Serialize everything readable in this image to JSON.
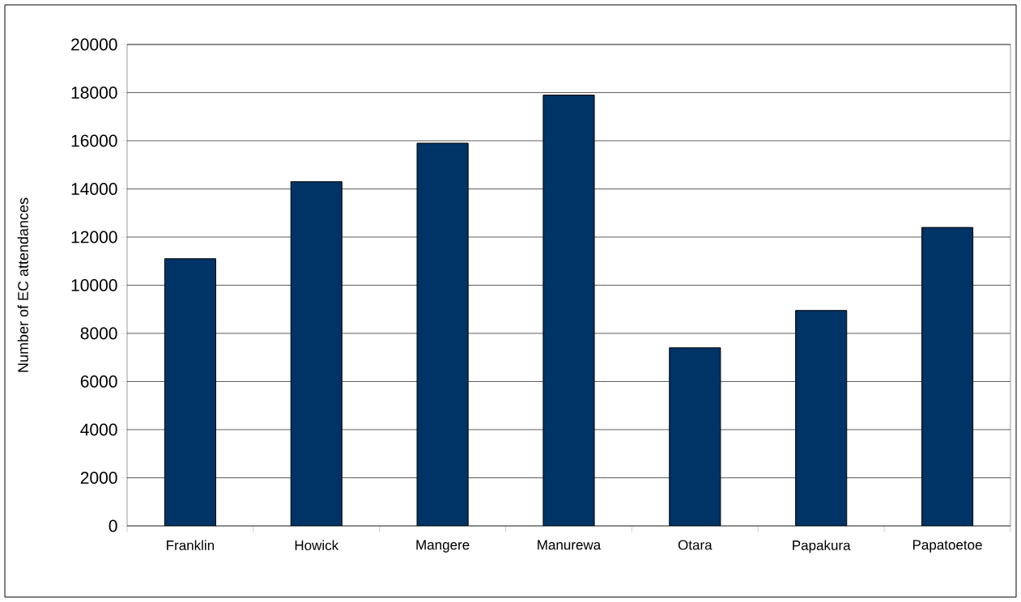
{
  "chart_data": {
    "type": "bar",
    "ylabel": "Number of EC attendances",
    "categories": [
      "Franklin",
      "Howick",
      "Mangere",
      "Manurewa",
      "Otara",
      "Papakura",
      "Papatoetoe"
    ],
    "values": [
      11100,
      14300,
      15900,
      17900,
      7400,
      8950,
      12400
    ],
    "color": "#003366",
    "ylim": [
      0,
      20000
    ],
    "yticks": [
      0,
      2000,
      4000,
      6000,
      8000,
      10000,
      12000,
      14000,
      16000,
      18000,
      20000
    ],
    "grid": "y"
  }
}
